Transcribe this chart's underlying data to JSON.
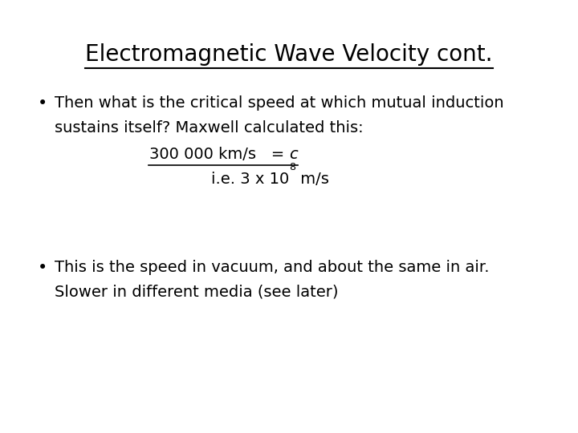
{
  "title": "Electromagnetic Wave Velocity cont.",
  "background_color": "#ffffff",
  "text_color": "#000000",
  "title_fontsize": 20,
  "body_fontsize": 14,
  "bullet1_line1": "Then what is the critical speed at which mutual induction",
  "bullet1_line2": "sustains itself? Maxwell calculated this:",
  "speed_part1": "300 000 km/s   = ",
  "speed_part2": "c",
  "ie_part1": "i.e. 3 x 10",
  "ie_super": "8",
  "ie_part2": " m/s",
  "bullet2_line1": "This is the speed in vacuum, and about the same in air.",
  "bullet2_line2": "Slower in different media (see later)"
}
